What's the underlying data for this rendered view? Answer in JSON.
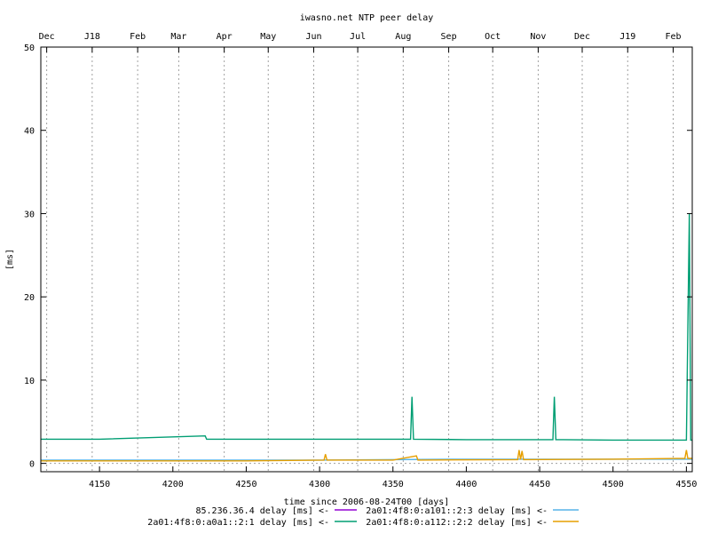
{
  "chart_data": {
    "type": "line",
    "title": "iwasno.net NTP peer delay",
    "xlabel": "time since 2006-08-24T00 [days]",
    "ylabel": "[ms]",
    "xlim": [
      4110,
      4554
    ],
    "ylim": [
      -1,
      50
    ],
    "x_ticks": [
      4150,
      4200,
      4250,
      4300,
      4350,
      4400,
      4450,
      4500,
      4550
    ],
    "y_ticks": [
      0,
      10,
      20,
      30,
      40,
      50
    ],
    "top_axis_months": [
      {
        "label": "Dec",
        "x": 4114
      },
      {
        "label": "J18",
        "x": 4145
      },
      {
        "label": "Feb",
        "x": 4176
      },
      {
        "label": "Mar",
        "x": 4204
      },
      {
        "label": "Apr",
        "x": 4235
      },
      {
        "label": "May",
        "x": 4265
      },
      {
        "label": "Jun",
        "x": 4296
      },
      {
        "label": "Jul",
        "x": 4326
      },
      {
        "label": "Aug",
        "x": 4357
      },
      {
        "label": "Sep",
        "x": 4388
      },
      {
        "label": "Oct",
        "x": 4418
      },
      {
        "label": "Nov",
        "x": 4449
      },
      {
        "label": "Dec",
        "x": 4479
      },
      {
        "label": "J19",
        "x": 4510
      },
      {
        "label": "Feb",
        "x": 4541
      }
    ],
    "grid": "vertical dotted lines at month boundaries",
    "legend_position": "bottom",
    "series": [
      {
        "name": "85.236.36.4 delay [ms] <-",
        "color": "#9400d3",
        "points": []
      },
      {
        "name": "2a01:4f8:0:a101::2:3 delay [ms] <-",
        "color": "#56b4e9",
        "points": [
          [
            4110,
            0.4
          ],
          [
            4300,
            0.4
          ],
          [
            4400,
            0.5
          ],
          [
            4500,
            0.5
          ],
          [
            4554,
            0.5
          ]
        ]
      },
      {
        "name": "2a01:4f8:0:a0a1::2:1 delay [ms] <-",
        "color": "#009e73",
        "points": [
          [
            4110,
            2.9
          ],
          [
            4150,
            2.9
          ],
          [
            4222,
            3.3
          ],
          [
            4223,
            2.9
          ],
          [
            4300,
            2.9
          ],
          [
            4362,
            2.9
          ],
          [
            4363,
            8.0
          ],
          [
            4364,
            2.9
          ],
          [
            4400,
            2.85
          ],
          [
            4459,
            2.85
          ],
          [
            4460,
            8.0
          ],
          [
            4461,
            2.85
          ],
          [
            4500,
            2.8
          ],
          [
            4550,
            2.8
          ],
          [
            4552,
            30.0
          ],
          [
            4553,
            2.8
          ],
          [
            4554,
            2.8
          ]
        ]
      },
      {
        "name": "2a01:4f8:0:a112::2:2 delay [ms] <-",
        "color": "#e69f00",
        "points": [
          [
            4110,
            0.3
          ],
          [
            4250,
            0.3
          ],
          [
            4303,
            0.4
          ],
          [
            4304,
            1.1
          ],
          [
            4305,
            0.4
          ],
          [
            4350,
            0.4
          ],
          [
            4366,
            0.9
          ],
          [
            4367,
            0.4
          ],
          [
            4435,
            0.45
          ],
          [
            4436,
            1.6
          ],
          [
            4437,
            0.45
          ],
          [
            4438,
            1.5
          ],
          [
            4439,
            0.45
          ],
          [
            4500,
            0.5
          ],
          [
            4549,
            0.6
          ],
          [
            4550,
            1.6
          ],
          [
            4551,
            0.6
          ],
          [
            4554,
            0.6
          ]
        ]
      }
    ]
  }
}
